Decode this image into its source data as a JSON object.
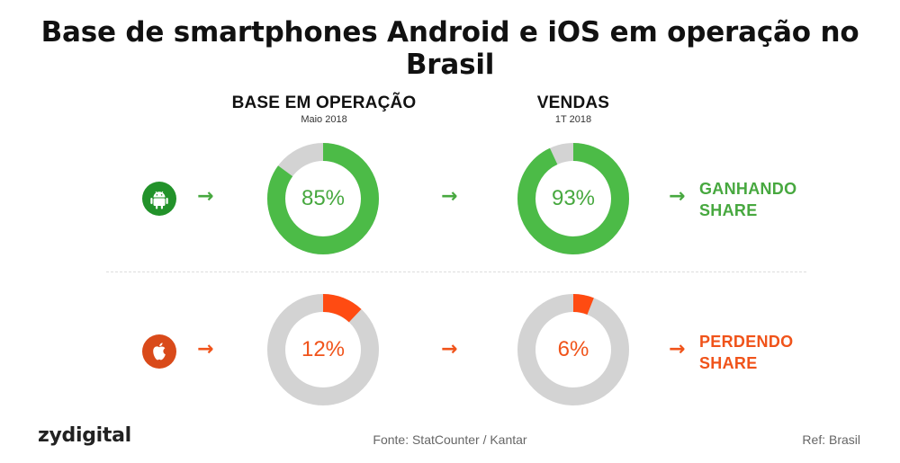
{
  "title": "Base de smartphones Android e iOS em operação no Brasil",
  "columns": [
    {
      "heading": "BASE EM OPERAÇÃO",
      "sub": "Maio 2018"
    },
    {
      "heading": "VENDAS",
      "sub": "1T 2018"
    }
  ],
  "rows": [
    {
      "platform": "Android",
      "icon": "android-icon",
      "arrow": "→",
      "status_line1": "GANHANDO",
      "status_line2": "SHARE"
    },
    {
      "platform": "iOS",
      "icon": "apple-icon",
      "arrow": "→",
      "status_line1": "PERDENDO",
      "status_line2": "SHARE"
    }
  ],
  "chart_data": {
    "type": "pie",
    "variant": "donut",
    "categories": [
      "BASE EM OPERAÇÃO",
      "VENDAS"
    ],
    "series": [
      {
        "name": "Android",
        "values": [
          85,
          93
        ],
        "labels": [
          "85%",
          "93%"
        ]
      },
      {
        "name": "iOS",
        "values": [
          12,
          6
        ],
        "labels": [
          "12%",
          "6%"
        ]
      }
    ],
    "max": 100
  },
  "colors": {
    "android": "#4cbb47",
    "android_text": "#47a83f",
    "android_icon_bg": "#22922a",
    "ios": "#ff4b12",
    "ios_text": "#f0531a",
    "ios_icon_bg": "#d94a1a",
    "remainder": "#d3d3d3"
  },
  "footer": {
    "logo": "zydigital",
    "source": "Fonte: StatCounter / Kantar",
    "ref": "Ref: Brasil"
  }
}
